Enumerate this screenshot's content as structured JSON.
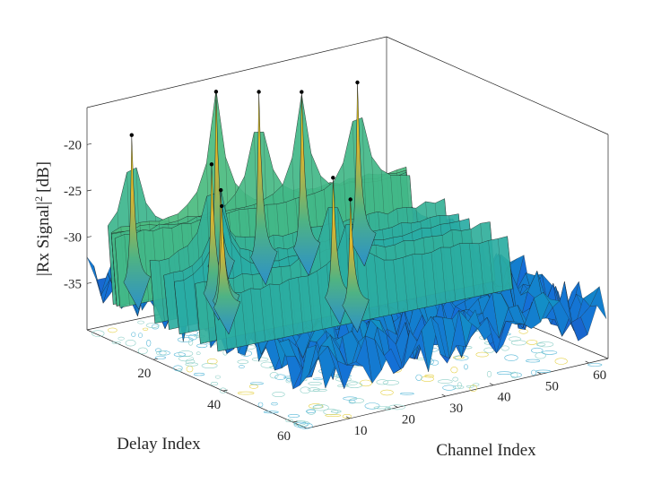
{
  "chart_data": {
    "type": "surface3d",
    "title": "",
    "xlabel": "Channel Index",
    "ylabel": "Delay Index",
    "zlabel": "|Rx Signal|",
    "zlabel_superscript": "2",
    "zlabel_unit": "[dB]",
    "xlim": [
      1,
      64
    ],
    "ylim": [
      1,
      64
    ],
    "zlim": [
      -40,
      -16
    ],
    "x_ticks": [
      10,
      20,
      30,
      40,
      50,
      60
    ],
    "y_ticks": [
      20,
      40,
      60
    ],
    "z_ticks": [
      -35,
      -30,
      -25,
      -20
    ],
    "x_tick_labels": [
      "10",
      "20",
      "30",
      "40",
      "50",
      "60"
    ],
    "y_tick_labels": [
      "20",
      "40",
      "60"
    ],
    "z_tick_labels": [
      "-35",
      "-30",
      "-25",
      "-20"
    ],
    "noise_floor_db": -34,
    "colormap": "parula",
    "contour_projection": true,
    "peaks": [
      {
        "channel": 6,
        "delay": 7,
        "db": -18.5
      },
      {
        "channel": 23,
        "delay": 8,
        "db": -15.5
      },
      {
        "channel": 32,
        "delay": 8,
        "db": -16.5
      },
      {
        "channel": 41,
        "delay": 8,
        "db": -17.5
      },
      {
        "channel": 52,
        "delay": 9,
        "db": -17.5
      },
      {
        "channel": 14,
        "delay": 19,
        "db": -20.5
      },
      {
        "channel": 13,
        "delay": 23,
        "db": -22.5
      },
      {
        "channel": 11,
        "delay": 26,
        "db": -23.5
      },
      {
        "channel": 30,
        "delay": 32,
        "db": -21.5
      },
      {
        "channel": 30,
        "delay": 37,
        "db": -23.0
      }
    ]
  }
}
